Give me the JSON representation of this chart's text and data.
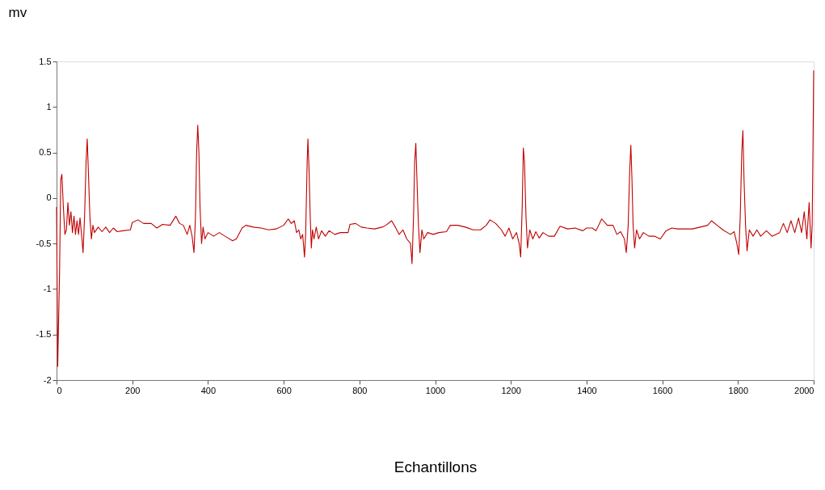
{
  "chart_data": {
    "type": "line",
    "xlabel": "Echantillons",
    "ylabel": "mv",
    "xlim": [
      0,
      2000
    ],
    "xticks": [
      0,
      200,
      400,
      600,
      800,
      1000,
      1200,
      1400,
      1600,
      1800,
      2000
    ],
    "ylim": [
      -2,
      1.5
    ],
    "yticks": [
      -2,
      -1.5,
      -1,
      -0.5,
      0,
      0.5,
      1,
      1.5
    ],
    "grid": false,
    "legend": false,
    "marker": "none",
    "line_style": "solid",
    "series": [
      {
        "color": "#c00000",
        "x": [
          0,
          3,
          8,
          11,
          14,
          18,
          22,
          26,
          30,
          34,
          38,
          42,
          46,
          50,
          54,
          58,
          62,
          66,
          70,
          74,
          78,
          81,
          84,
          88,
          92,
          96,
          100,
          110,
          120,
          130,
          140,
          150,
          160,
          175,
          195,
          200,
          215,
          230,
          250,
          265,
          280,
          300,
          315,
          325,
          335,
          345,
          352,
          358,
          363,
          367,
          370,
          373,
          376,
          379,
          383,
          387,
          392,
          400,
          415,
          430,
          445,
          465,
          475,
          490,
          500,
          520,
          540,
          560,
          580,
          600,
          612,
          620,
          628,
          634,
          640,
          645,
          650,
          655,
          658,
          662,
          664,
          667,
          670,
          673,
          676,
          680,
          686,
          692,
          700,
          710,
          720,
          735,
          750,
          770,
          775,
          790,
          805,
          820,
          840,
          860,
          870,
          885,
          895,
          905,
          915,
          925,
          935,
          939,
          943,
          946,
          949,
          952,
          956,
          960,
          965,
          970,
          980,
          995,
          1010,
          1030,
          1040,
          1060,
          1080,
          1100,
          1120,
          1135,
          1145,
          1160,
          1175,
          1185,
          1195,
          1205,
          1215,
          1222,
          1226,
          1230,
          1233,
          1236,
          1240,
          1244,
          1250,
          1258,
          1266,
          1275,
          1285,
          1300,
          1315,
          1330,
          1350,
          1370,
          1390,
          1400,
          1415,
          1425,
          1440,
          1455,
          1470,
          1480,
          1490,
          1500,
          1505,
          1510,
          1514,
          1517,
          1520,
          1523,
          1527,
          1532,
          1540,
          1550,
          1565,
          1580,
          1595,
          1610,
          1625,
          1640,
          1660,
          1680,
          1700,
          1720,
          1730,
          1745,
          1760,
          1780,
          1790,
          1797,
          1802,
          1806,
          1810,
          1813,
          1816,
          1820,
          1824,
          1830,
          1840,
          1850,
          1860,
          1875,
          1890,
          1910,
          1920,
          1930,
          1940,
          1950,
          1960,
          1968,
          1975,
          1982,
          1988,
          1993,
          1996,
          1998,
          2000
        ],
        "values": [
          -0.1,
          -1.85,
          -0.8,
          0.2,
          0.26,
          -0.1,
          -0.4,
          -0.35,
          -0.05,
          -0.3,
          -0.15,
          -0.38,
          -0.2,
          -0.4,
          -0.25,
          -0.4,
          -0.22,
          -0.4,
          -0.6,
          -0.2,
          0.4,
          0.65,
          0.3,
          -0.2,
          -0.45,
          -0.3,
          -0.38,
          -0.32,
          -0.37,
          -0.32,
          -0.38,
          -0.33,
          -0.37,
          -0.36,
          -0.35,
          -0.27,
          -0.24,
          -0.28,
          -0.28,
          -0.33,
          -0.29,
          -0.3,
          -0.2,
          -0.28,
          -0.3,
          -0.4,
          -0.3,
          -0.42,
          -0.6,
          -0.2,
          0.5,
          0.8,
          0.5,
          -0.1,
          -0.5,
          -0.32,
          -0.45,
          -0.38,
          -0.42,
          -0.38,
          -0.42,
          -0.47,
          -0.45,
          -0.33,
          -0.3,
          -0.32,
          -0.33,
          -0.35,
          -0.34,
          -0.3,
          -0.23,
          -0.28,
          -0.25,
          -0.38,
          -0.35,
          -0.45,
          -0.4,
          -0.65,
          -0.4,
          0.4,
          0.65,
          0.3,
          -0.2,
          -0.55,
          -0.35,
          -0.45,
          -0.32,
          -0.45,
          -0.36,
          -0.42,
          -0.36,
          -0.4,
          -0.38,
          -0.38,
          -0.29,
          -0.28,
          -0.32,
          -0.33,
          -0.34,
          -0.32,
          -0.3,
          -0.25,
          -0.32,
          -0.4,
          -0.35,
          -0.45,
          -0.5,
          -0.72,
          -0.2,
          0.4,
          0.6,
          0.2,
          -0.3,
          -0.6,
          -0.35,
          -0.45,
          -0.38,
          -0.4,
          -0.38,
          -0.37,
          -0.3,
          -0.3,
          -0.32,
          -0.35,
          -0.35,
          -0.3,
          -0.24,
          -0.28,
          -0.35,
          -0.42,
          -0.33,
          -0.45,
          -0.38,
          -0.5,
          -0.65,
          -0.1,
          0.55,
          0.4,
          -0.2,
          -0.55,
          -0.35,
          -0.45,
          -0.37,
          -0.44,
          -0.38,
          -0.42,
          -0.42,
          -0.31,
          -0.34,
          -0.33,
          -0.36,
          -0.33,
          -0.33,
          -0.36,
          -0.23,
          -0.3,
          -0.3,
          -0.4,
          -0.37,
          -0.45,
          -0.6,
          -0.3,
          0.3,
          0.58,
          0.2,
          -0.3,
          -0.55,
          -0.35,
          -0.45,
          -0.38,
          -0.42,
          -0.42,
          -0.45,
          -0.36,
          -0.33,
          -0.34,
          -0.34,
          -0.34,
          -0.32,
          -0.3,
          -0.25,
          -0.3,
          -0.35,
          -0.4,
          -0.37,
          -0.5,
          -0.62,
          -0.2,
          0.5,
          0.74,
          0.2,
          -0.3,
          -0.58,
          -0.35,
          -0.42,
          -0.35,
          -0.42,
          -0.36,
          -0.42,
          -0.38,
          -0.28,
          -0.38,
          -0.25,
          -0.38,
          -0.22,
          -0.38,
          -0.15,
          -0.45,
          -0.05,
          -0.55,
          -0.3,
          0.5,
          1.4
        ]
      }
    ]
  }
}
